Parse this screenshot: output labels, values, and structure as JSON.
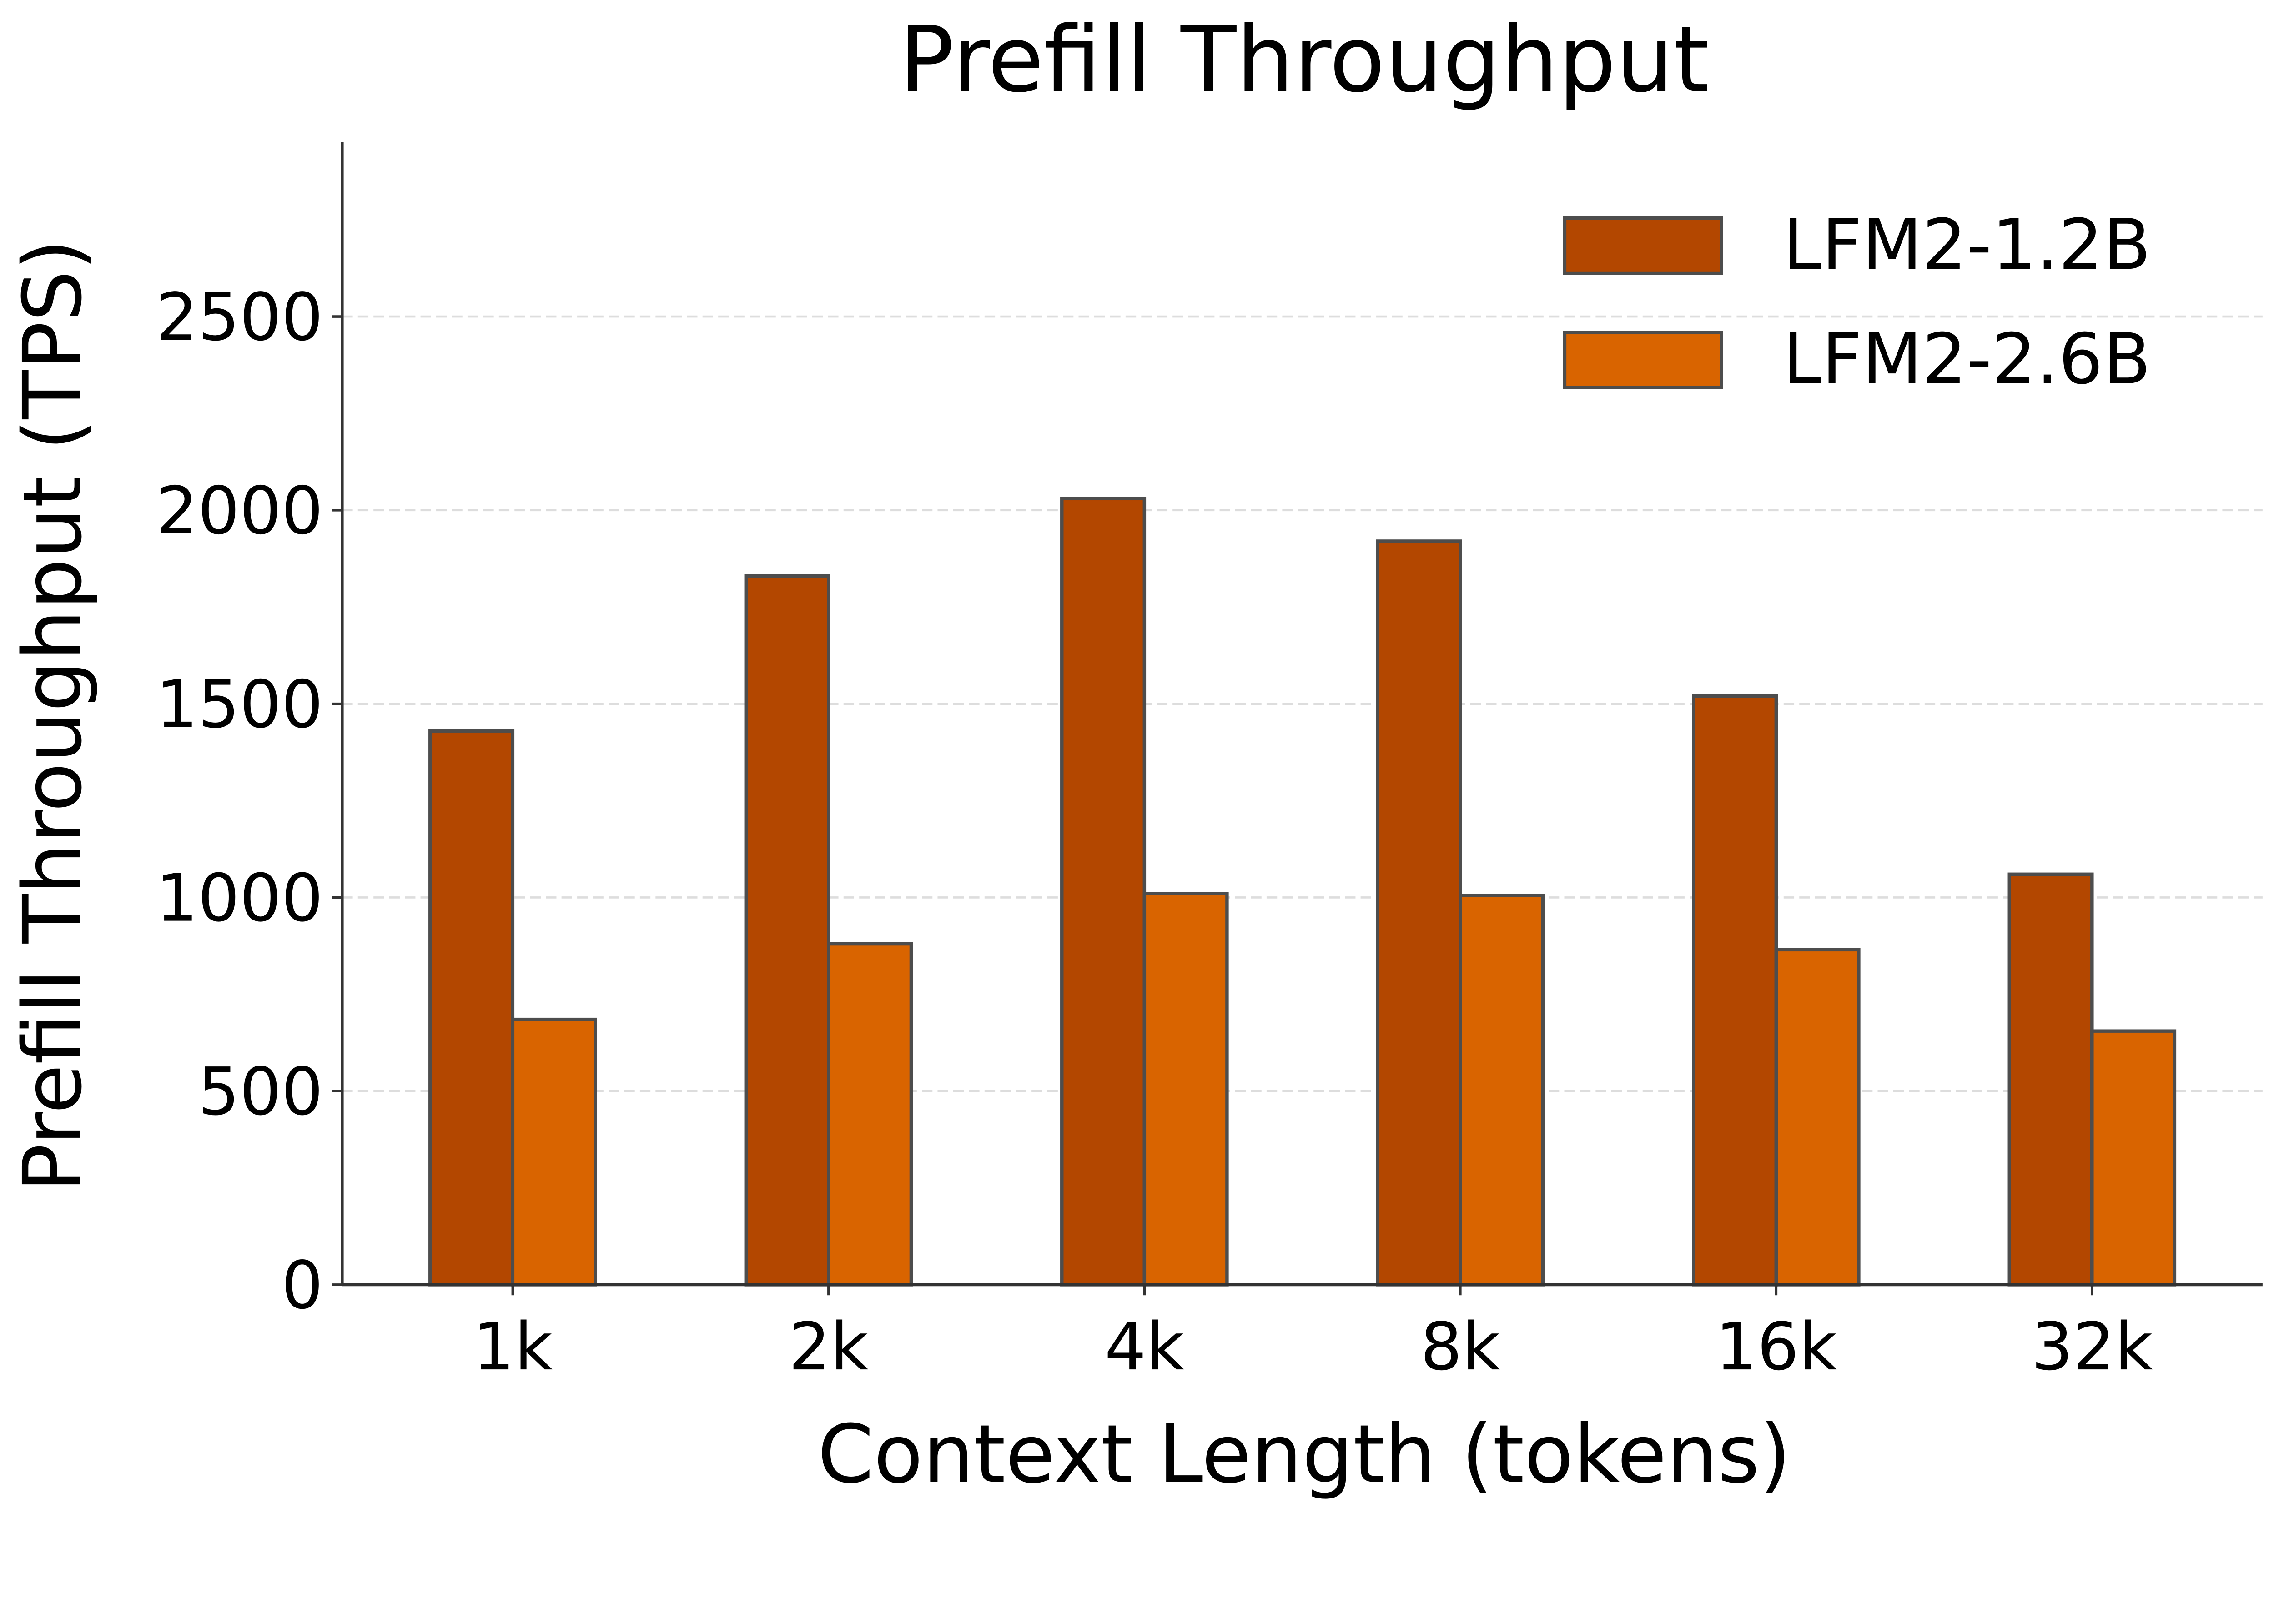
{
  "chart_data": {
    "type": "bar",
    "title": "Prefill Throughput",
    "xlabel": "Context Length (tokens)",
    "ylabel": "Prefill Throughput (TPS)",
    "categories": [
      "1k",
      "2k",
      "4k",
      "8k",
      "16k",
      "32k"
    ],
    "series": [
      {
        "name": "LFM2-1.2B",
        "color": "#b34700",
        "values": [
          1430,
          1830,
          2030,
          1920,
          1520,
          1060
        ]
      },
      {
        "name": "LFM2-2.6B",
        "color": "#d96400",
        "values": [
          685,
          880,
          1010,
          1005,
          865,
          655
        ]
      }
    ],
    "yticks": [
      0,
      500,
      1000,
      1500,
      2000,
      2500
    ],
    "ylim": [
      0,
      2950
    ],
    "grid": true,
    "legend_position": "top-right",
    "edge_color": "#4d4d4d"
  }
}
